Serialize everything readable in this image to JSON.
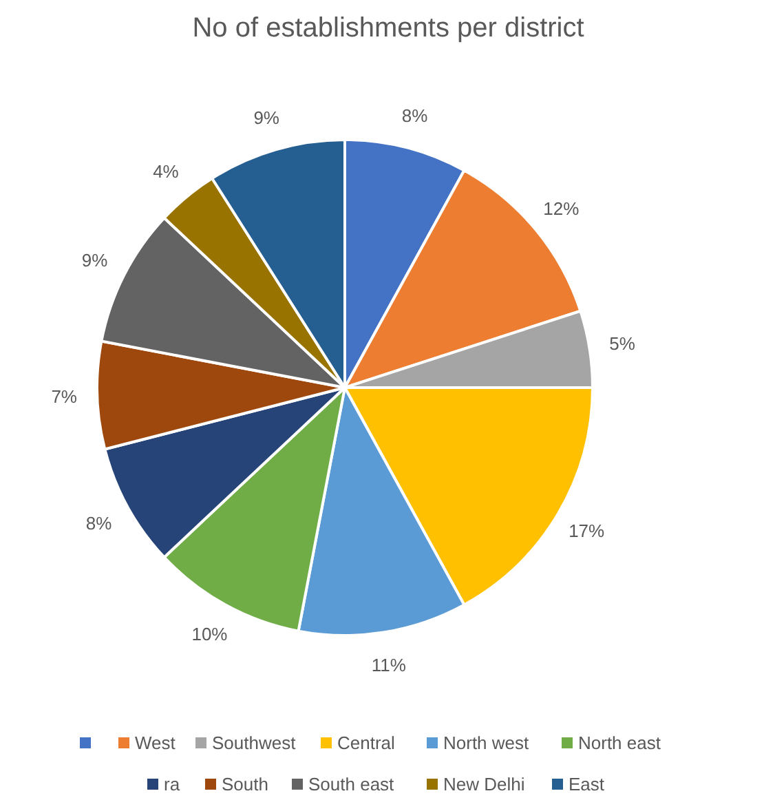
{
  "chart_data": {
    "type": "pie",
    "title": "No of establishments per district",
    "categories": [
      null,
      "West",
      "Southwest",
      "Central",
      "North west",
      "North east",
      "ra",
      "South",
      "South east",
      "New Delhi",
      "East"
    ],
    "values": [
      8,
      12,
      5,
      17,
      11,
      10,
      8,
      7,
      9,
      4,
      9
    ],
    "value_labels": [
      "8%",
      "12%",
      "5%",
      "17%",
      "11%",
      "10%",
      "8%",
      "7%",
      "9%",
      "4%",
      "9%"
    ],
    "colors": [
      "#4472c4",
      "#ed7d31",
      "#a5a5a5",
      "#ffc000",
      "#5b9bd5",
      "#70ad47",
      "#264478",
      "#9e480e",
      "#636363",
      "#997300",
      "#255e91"
    ],
    "legend": "bottom"
  }
}
